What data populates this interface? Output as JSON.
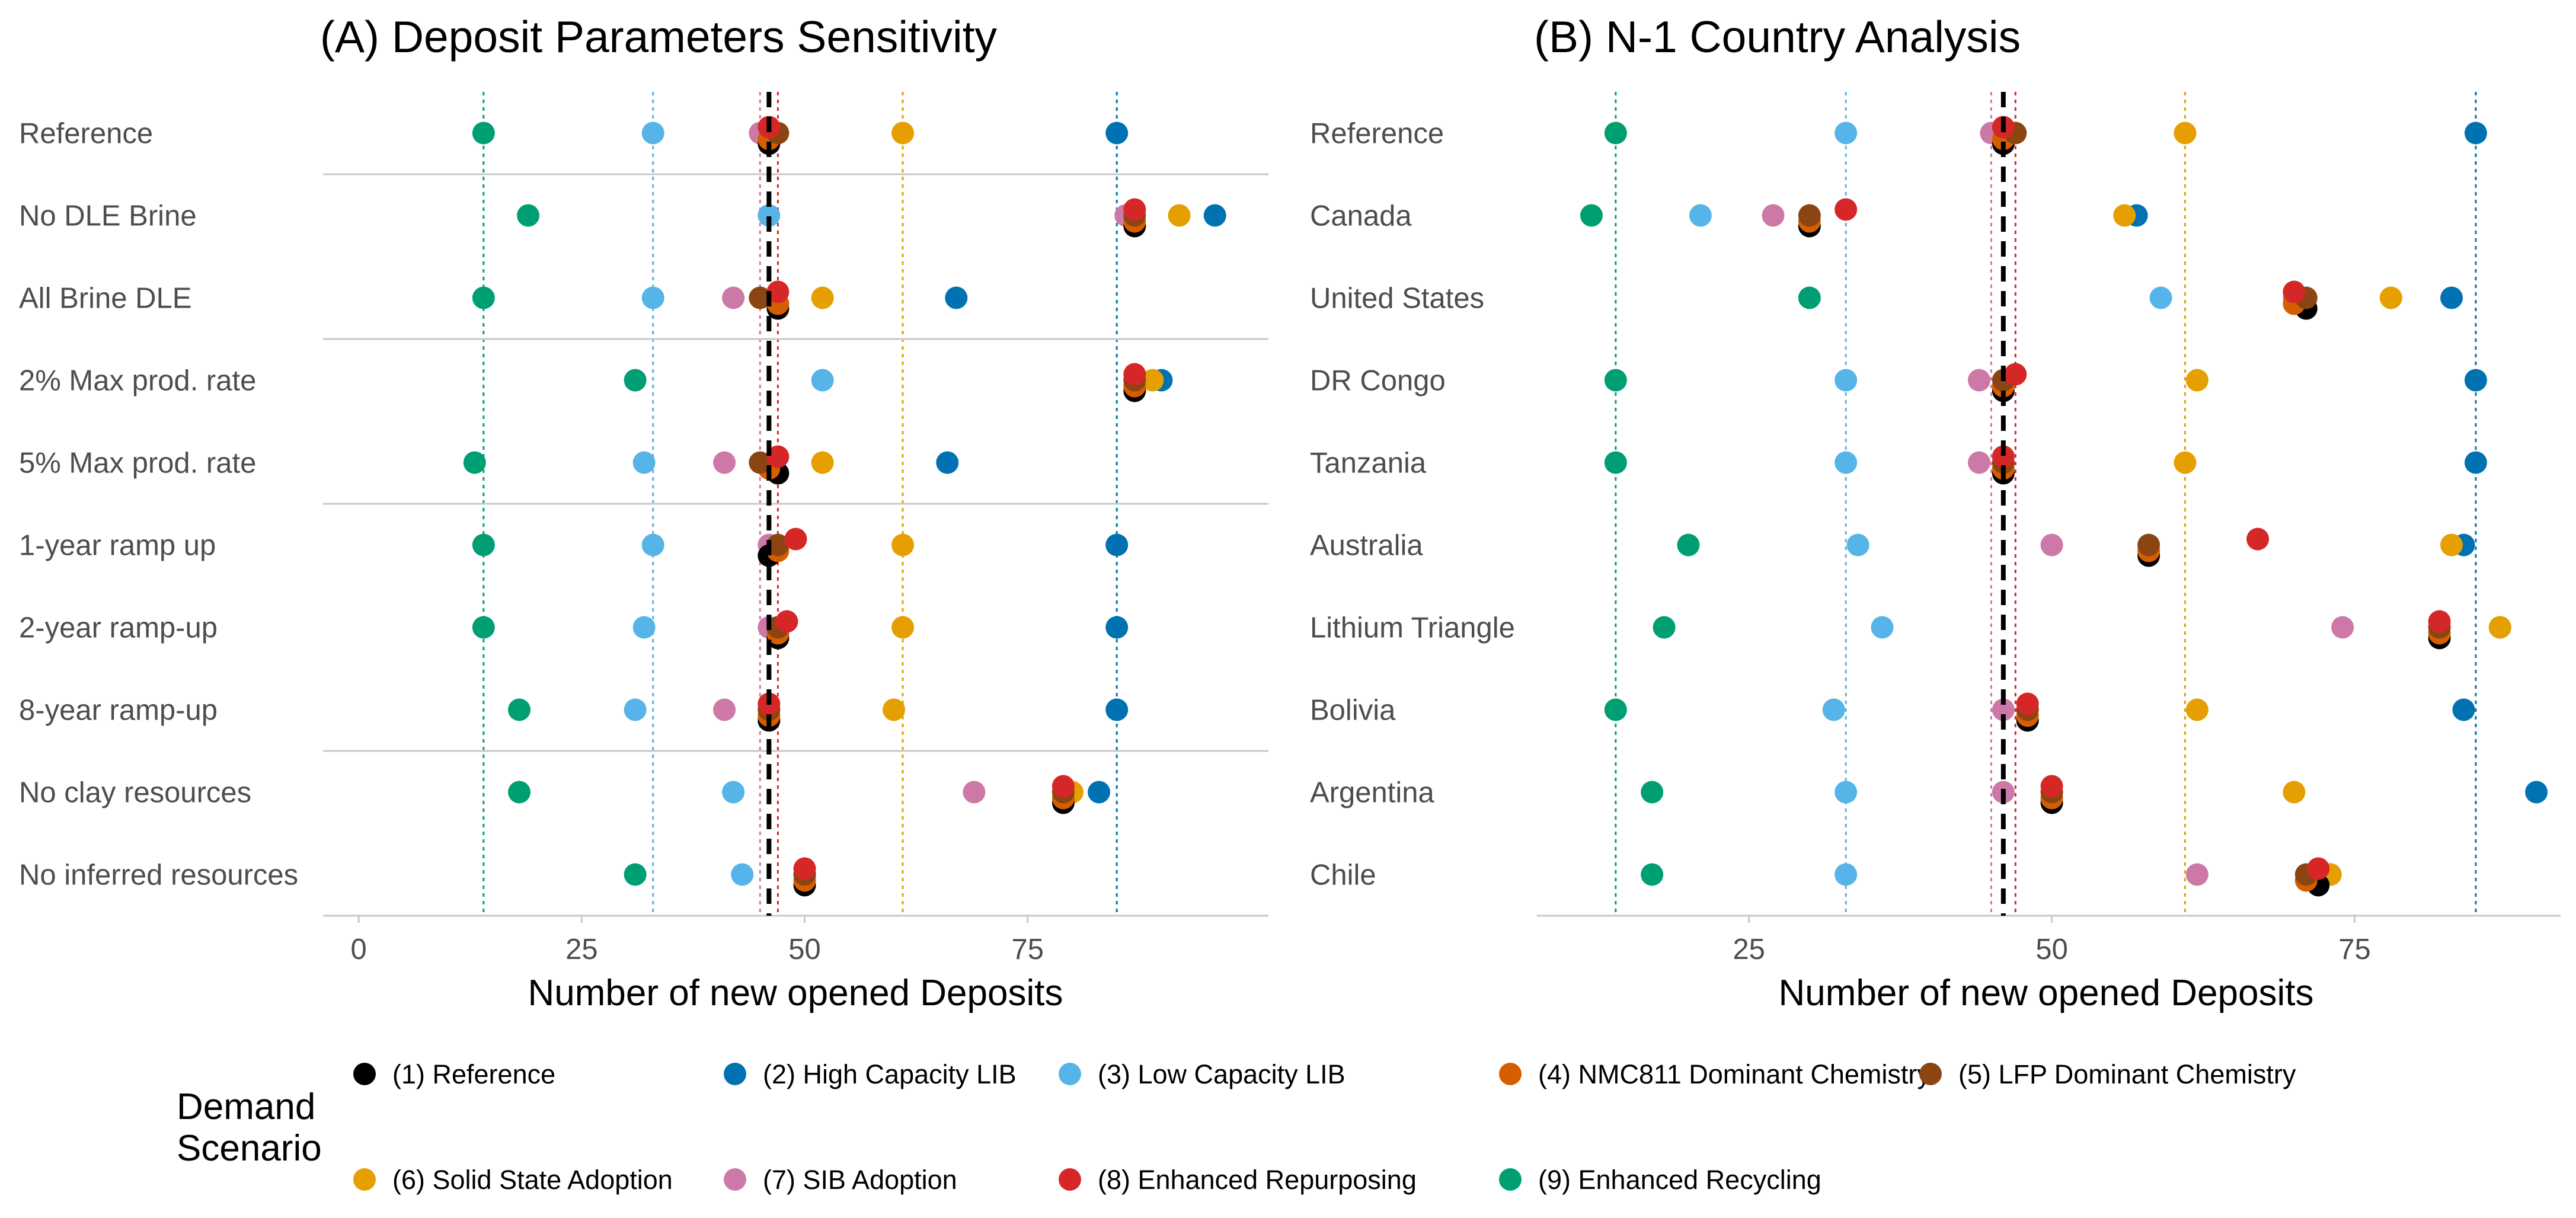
{
  "colors": {
    "1": "#000000",
    "2": "#0072B2",
    "3": "#56B4E9",
    "4": "#D55E00",
    "5": "#8B4513",
    "6": "#E69F00",
    "7": "#CC79A7",
    "8": "#D62728",
    "9": "#009E73"
  },
  "legend": {
    "title_line1": "Demand",
    "title_line2": "Scenario",
    "items": [
      {
        "key": "1",
        "label": "(1) Reference"
      },
      {
        "key": "2",
        "label": "(2) High Capacity LIB"
      },
      {
        "key": "3",
        "label": "(3) Low Capacity LIB"
      },
      {
        "key": "4",
        "label": "(4) NMC811 Dominant Chemistry"
      },
      {
        "key": "5",
        "label": "(5) LFP Dominant Chemistry"
      },
      {
        "key": "6",
        "label": "(6) Solid State Adoption"
      },
      {
        "key": "7",
        "label": "(7) SIB Adoption"
      },
      {
        "key": "8",
        "label": "(8) Enhanced Repurposing"
      },
      {
        "key": "9",
        "label": "(9) Enhanced Recycling"
      }
    ]
  },
  "chart_data": [
    {
      "type": "scatter",
      "title": "(A) Deposit Parameters Sensitivity",
      "xlabel": "Number of new opened Deposits",
      "xlim": [
        -4,
        102
      ],
      "xticks": [
        0,
        25,
        50,
        75
      ],
      "reference_line": 46,
      "vlines": [
        {
          "key": "9",
          "x": 14
        },
        {
          "key": "3",
          "x": 33
        },
        {
          "key": "7",
          "x": 45
        },
        {
          "key": "8",
          "x": 47
        },
        {
          "key": "6",
          "x": 61
        },
        {
          "key": "2",
          "x": 85
        }
      ],
      "separators_after_row": [
        0,
        2,
        4,
        7
      ],
      "rows": [
        {
          "label": "Reference",
          "points": {
            "1": 46,
            "2": 85,
            "3": 33,
            "4": 46,
            "5": 47,
            "6": 61,
            "7": 45,
            "8": 46,
            "9": 14
          }
        },
        {
          "label": "No DLE Brine",
          "points": {
            "1": 87,
            "2": 96,
            "3": 46,
            "4": 87,
            "5": 87,
            "6": 92,
            "7": 86,
            "8": 87,
            "9": 19
          }
        },
        {
          "label": "All Brine DLE",
          "points": {
            "1": 47,
            "2": 67,
            "3": 33,
            "4": 47,
            "5": 45,
            "6": 52,
            "7": 42,
            "8": 47,
            "9": 14
          }
        },
        {
          "label": "2% Max prod. rate",
          "points": {
            "1": 87,
            "2": 90,
            "3": 52,
            "4": 87,
            "5": 87,
            "6": 89,
            "7": 87,
            "8": 87,
            "9": 31
          }
        },
        {
          "label": "5% Max prod. rate",
          "points": {
            "1": 47,
            "2": 66,
            "3": 32,
            "4": 46,
            "5": 45,
            "6": 52,
            "7": 41,
            "8": 47,
            "9": 13
          }
        },
        {
          "label": "1-year ramp up",
          "points": {
            "1": 46,
            "2": 85,
            "3": 33,
            "4": 47,
            "5": 47,
            "6": 61,
            "7": 46,
            "8": 49,
            "9": 14
          }
        },
        {
          "label": "2-year ramp-up",
          "points": {
            "1": 47,
            "2": 85,
            "3": 32,
            "4": 47,
            "5": 47,
            "6": 61,
            "7": 46,
            "8": 48,
            "9": 14
          }
        },
        {
          "label": "8-year ramp-up",
          "points": {
            "1": 46,
            "2": 85,
            "3": 31,
            "4": 46,
            "5": 46,
            "6": 60,
            "7": 41,
            "8": 46,
            "9": 18
          }
        },
        {
          "label": "No clay resources",
          "points": {
            "1": 79,
            "2": 83,
            "3": 42,
            "4": 79,
            "5": 79,
            "6": 80,
            "7": 69,
            "8": 79,
            "9": 18
          }
        },
        {
          "label": "No inferred resources",
          "points": {
            "1": 50,
            "2": 50,
            "3": 43,
            "4": 50,
            "5": 50,
            "6": 50,
            "7": 50,
            "8": 50,
            "9": 31
          }
        }
      ]
    },
    {
      "type": "scatter",
      "title": "(B) N-1 Country Analysis",
      "xlabel": "Number of new opened Deposits",
      "xlim": [
        7.5,
        92
      ],
      "xticks": [
        25,
        50,
        75
      ],
      "reference_line": 46,
      "vlines": [
        {
          "key": "9",
          "x": 14
        },
        {
          "key": "3",
          "x": 33
        },
        {
          "key": "7",
          "x": 45
        },
        {
          "key": "8",
          "x": 47
        },
        {
          "key": "6",
          "x": 61
        },
        {
          "key": "2",
          "x": 85
        }
      ],
      "separators_after_row": [],
      "rows": [
        {
          "label": "Reference",
          "points": {
            "1": 46,
            "2": 85,
            "3": 33,
            "4": 46,
            "5": 47,
            "6": 61,
            "7": 45,
            "8": 46,
            "9": 14
          }
        },
        {
          "label": "Canada",
          "points": {
            "1": 30,
            "2": 57,
            "3": 21,
            "4": 30,
            "5": 30,
            "6": 56,
            "7": 27,
            "8": 33,
            "9": 12
          }
        },
        {
          "label": "United States",
          "points": {
            "1": 71,
            "2": 83,
            "3": 59,
            "4": 70,
            "5": 71,
            "6": 78,
            "7": 70,
            "8": 70,
            "9": 30
          }
        },
        {
          "label": "DR Congo",
          "points": {
            "1": 46,
            "2": 85,
            "3": 33,
            "4": 46,
            "5": 46,
            "6": 62,
            "7": 44,
            "8": 47,
            "9": 14
          }
        },
        {
          "label": "Tanzania",
          "points": {
            "1": 46,
            "2": 85,
            "3": 33,
            "4": 46,
            "5": 46,
            "6": 61,
            "7": 44,
            "8": 46,
            "9": 14
          }
        },
        {
          "label": "Australia",
          "points": {
            "1": 58,
            "2": 84,
            "3": 34,
            "4": 58,
            "5": 58,
            "6": 83,
            "7": 50,
            "8": 67,
            "9": 20
          }
        },
        {
          "label": "Lithium Triangle",
          "points": {
            "1": 82,
            "2": 87,
            "3": 36,
            "4": 82,
            "5": 82,
            "6": 87,
            "7": 74,
            "8": 82,
            "9": 18
          }
        },
        {
          "label": "Bolivia",
          "points": {
            "1": 48,
            "2": 84,
            "3": 32,
            "4": 48,
            "5": 48,
            "6": 62,
            "7": 46,
            "8": 48,
            "9": 14
          }
        },
        {
          "label": "Argentina",
          "points": {
            "1": 50,
            "2": 90,
            "3": 33,
            "4": 50,
            "5": 50,
            "6": 70,
            "7": 46,
            "8": 50,
            "9": 17
          }
        },
        {
          "label": "Chile",
          "points": {
            "1": 72,
            "2": 73,
            "3": 33,
            "4": 71,
            "5": 71,
            "6": 73,
            "7": 62,
            "8": 72,
            "9": 17
          }
        }
      ]
    }
  ]
}
